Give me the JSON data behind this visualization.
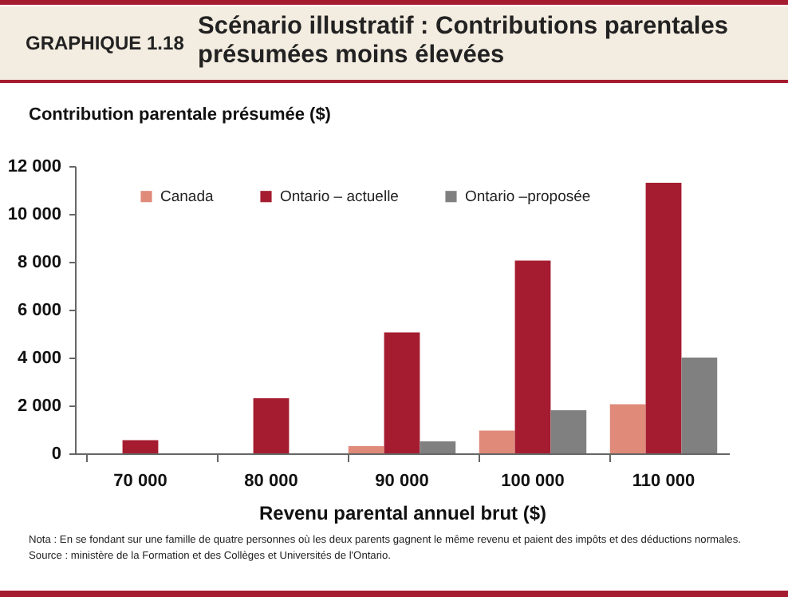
{
  "chart_data": {
    "type": "bar",
    "title": "Scénario illustratif : Contributions parentales présumées moins élevées",
    "subtitle": "GRAPHIQUE 1.18",
    "xlabel": "Revenu parental annuel brut ($)",
    "ylabel": "Contribution parentale présumée ($)",
    "categories": [
      "70 000",
      "80 000",
      "90 000",
      "100 000",
      "110 000"
    ],
    "series": [
      {
        "name": "Canada",
        "color": "#e08a7a",
        "values": [
          0,
          0,
          300,
          950,
          2050
        ]
      },
      {
        "name": "Ontario – actuelle",
        "color": "#a51c30",
        "values": [
          550,
          2300,
          5050,
          8050,
          11300
        ]
      },
      {
        "name": "Ontario –proposée",
        "color": "#808080",
        "values": [
          0,
          0,
          500,
          1800,
          4000
        ]
      }
    ],
    "ylim": [
      0,
      12000
    ],
    "yticks": [
      0,
      2000,
      4000,
      6000,
      8000,
      10000,
      12000
    ],
    "grid": false,
    "legend": "top",
    "annotations": [
      "Nota : En se fondant sur une famille de quatre personnes où les deux parents gagnent le même revenu et paient des impôts et des déductions normales.",
      "Source : ministère de la Formation et des Collèges et Universités de l'Ontario."
    ]
  }
}
